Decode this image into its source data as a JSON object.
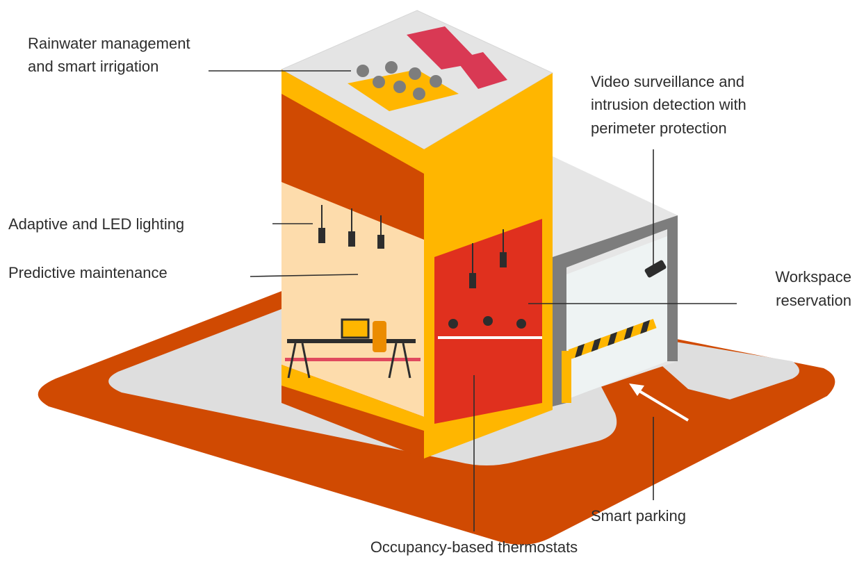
{
  "labels": [
    {
      "lines": [
        "Rainwater management",
        "and smart irrigation"
      ]
    },
    {
      "lines": [
        "Video surveillance and",
        "intrusion detection with",
        "perimeter protection"
      ]
    },
    {
      "lines": [
        "Adaptive and LED lighting"
      ]
    },
    {
      "lines": [
        "Predictive maintenance"
      ]
    },
    {
      "lines": [
        "Workspace",
        "reservation"
      ]
    },
    {
      "lines": [
        "Smart parking"
      ]
    },
    {
      "lines": [
        "Occupancy-based thermostats"
      ]
    }
  ]
}
